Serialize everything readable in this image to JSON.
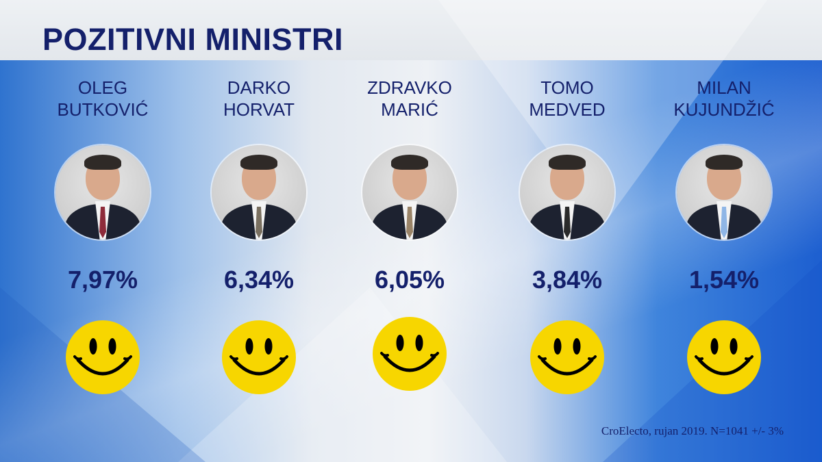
{
  "title": "POZITIVNI MINISTRI",
  "colors": {
    "text": "#14206b",
    "smiley": "#f7d600"
  },
  "chart_data": {
    "type": "table",
    "title": "POZITIVNI MINISTRI",
    "unit": "%",
    "categories": [
      "OLEG BUTKOVIĆ",
      "DARKO HORVAT",
      "ZDRAVKO MARIĆ",
      "TOMO MEDVED",
      "MILAN KUJUNDŽIĆ"
    ],
    "values": [
      7.97,
      6.34,
      6.05,
      3.84,
      1.54
    ]
  },
  "ministers": [
    {
      "first": "OLEG",
      "last": "BUTKOVIĆ",
      "percent": "7,97%",
      "icon": "smiley-face-icon",
      "tie": "#8e2b3a"
    },
    {
      "first": "DARKO",
      "last": "HORVAT",
      "percent": "6,34%",
      "icon": "smiley-face-icon",
      "tie": "#7a7060"
    },
    {
      "first": "ZDRAVKO",
      "last": "MARIĆ",
      "percent": "6,05%",
      "icon": "smiley-face-icon",
      "tie": "#9a8468"
    },
    {
      "first": "TOMO",
      "last": "MEDVED",
      "percent": "3,84%",
      "icon": "smiley-face-icon",
      "tie": "#2a2a2a"
    },
    {
      "first": "MILAN",
      "last": "KUJUNDŽIĆ",
      "percent": "1,54%",
      "icon": "smiley-face-icon",
      "tie": "#8fb6e6"
    }
  ],
  "source": "CroElecto, rujan 2019. N=1041 +/- 3%"
}
